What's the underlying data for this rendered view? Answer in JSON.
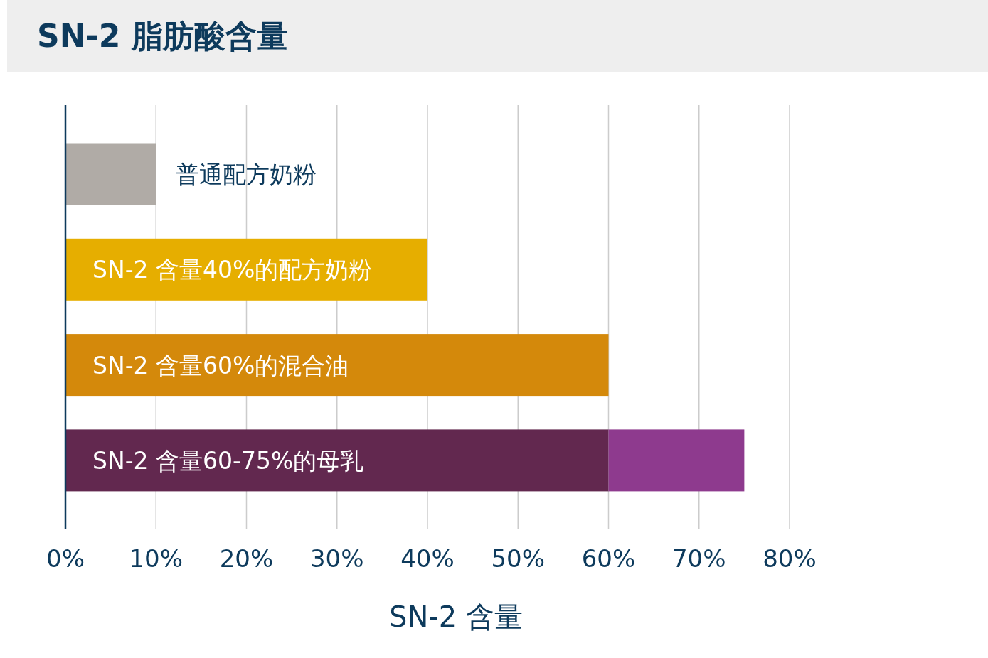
{
  "chart_data": {
    "type": "bar",
    "orientation": "horizontal",
    "stacked": true,
    "title": "SN-2 脂肪酸含量",
    "xlabel": "SN-2 含量",
    "categories": [
      "普通配方奶粉",
      "SN-2 含量40%的配方奶粉",
      "SN-2 含量60%的混合油",
      "SN-2 含量60-75%的母乳"
    ],
    "series": [
      {
        "colors": [
          "#b0aba6",
          "#e6ae00",
          "#d4890b",
          "#62284f"
        ],
        "values": [
          10,
          40,
          60,
          60
        ]
      },
      {
        "color": "#8e3a8e",
        "values": [
          null,
          null,
          null,
          15
        ]
      }
    ],
    "xlim": [
      0,
      80
    ],
    "xticks": [
      {
        "value": 0,
        "label": "0%"
      },
      {
        "value": 10,
        "label": "10%"
      },
      {
        "value": 20,
        "label": "20%"
      },
      {
        "value": 30,
        "label": "30%"
      },
      {
        "value": 40,
        "label": "40%"
      },
      {
        "value": 50,
        "label": "50%"
      },
      {
        "value": 60,
        "label": "60%"
      },
      {
        "value": 70,
        "label": "70%"
      },
      {
        "value": 80,
        "label": "80%"
      }
    ],
    "grid": "x"
  }
}
